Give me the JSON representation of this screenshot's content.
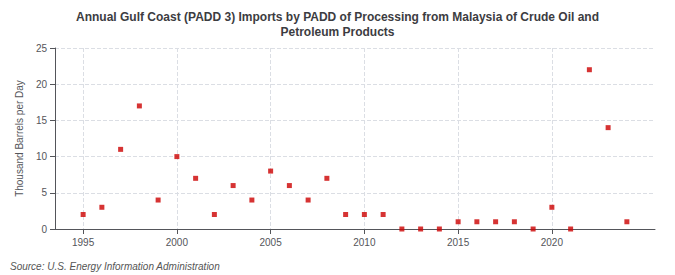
{
  "chart_data": {
    "type": "scatter",
    "title": "Annual Gulf Coast (PADD 3) Imports by PADD of Processing from Malaysia of Crude Oil and\nPetroleum Products",
    "ylabel": "Thousand Barrels per Day",
    "annotations": [
      "Source: U.S. Energy Information Administration"
    ],
    "x": [
      1995,
      1996,
      1997,
      1998,
      1999,
      2000,
      2001,
      2002,
      2003,
      2004,
      2005,
      2006,
      2007,
      2008,
      2009,
      2010,
      2011,
      2012,
      2013,
      2014,
      2015,
      2016,
      2017,
      2018,
      2019,
      2020,
      2021,
      2022,
      2023,
      2024
    ],
    "values": [
      2,
      3,
      11,
      17,
      4,
      10,
      7,
      2,
      6,
      4,
      8,
      6,
      4,
      7,
      2,
      2,
      2,
      0,
      0,
      0,
      1,
      1,
      1,
      1,
      0,
      3,
      0,
      22,
      14,
      1
    ],
    "color": "#cc0000",
    "marker": "square",
    "xlim": [
      1993.5,
      2025.5
    ],
    "xticks": [
      1995,
      2000,
      2005,
      2010,
      2015,
      2020
    ],
    "ylim": [
      0,
      25
    ],
    "yticks": [
      0,
      5,
      10,
      15,
      20,
      25
    ],
    "grid": true
  }
}
